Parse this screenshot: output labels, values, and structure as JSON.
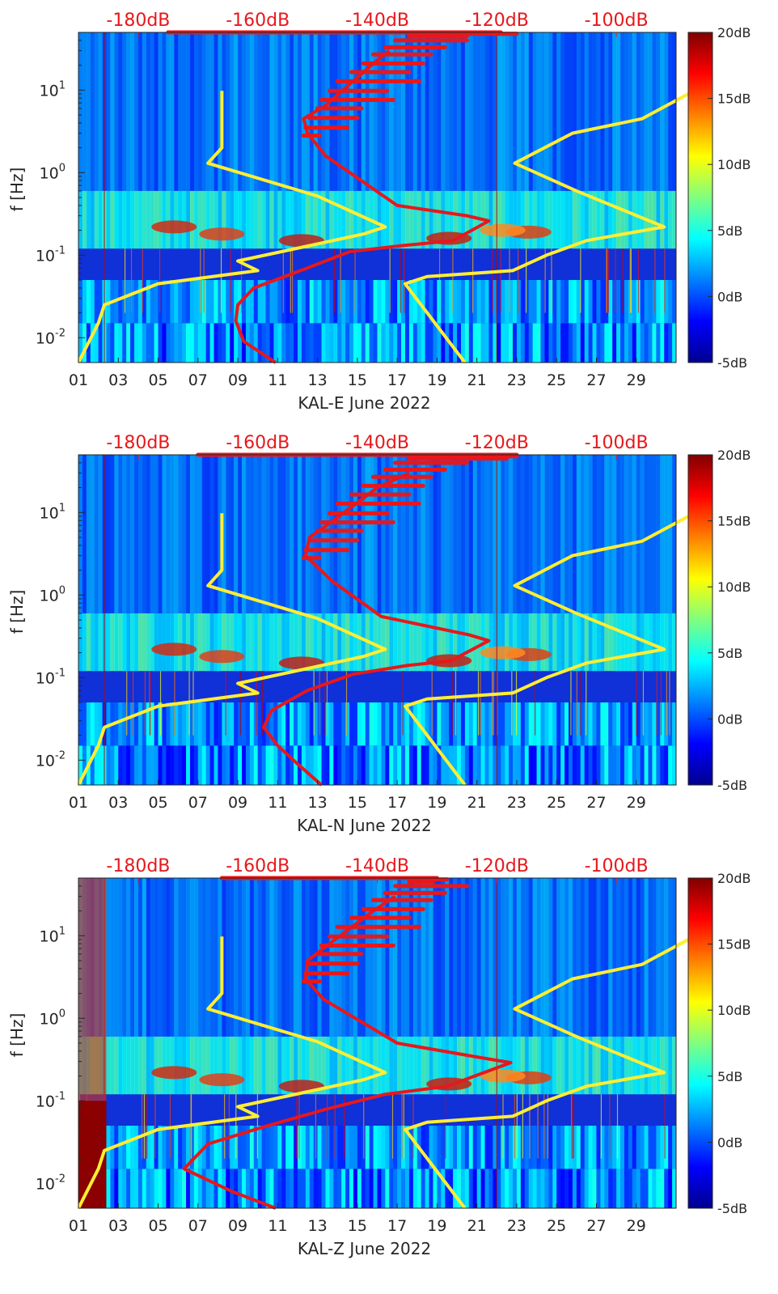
{
  "colors": {
    "reference_curve": "#ffee33",
    "psd_curve": "#e8171b",
    "top_axis_text": "#e8171b",
    "axis_text": "#262626"
  },
  "shared": {
    "ylabel": "f [Hz]",
    "x_tick_labels": [
      "01",
      "03",
      "05",
      "07",
      "09",
      "11",
      "13",
      "15",
      "17",
      "19",
      "21",
      "23",
      "25",
      "27",
      "29"
    ],
    "y_tick_labels": [
      "10-2",
      "100",
      "101"
    ],
    "y_tick_base": "10",
    "y_tick_exponents": [
      "-2",
      "-1",
      "0",
      "1"
    ],
    "top_axis_labels": [
      "-180dB",
      "-160dB",
      "-140dB",
      "-120dB",
      "-100dB"
    ],
    "colorbar_labels": [
      "20dB",
      "15dB",
      "10dB",
      "5dB",
      "0dB",
      "-5dB"
    ]
  },
  "chart_data": [
    {
      "type": "heatmap",
      "station": "KAL-E",
      "xlabel": "KAL-E June 2022",
      "ylabel": "f [Hz]",
      "x_unit": "day of June 2022",
      "x_range": [
        1,
        31
      ],
      "y_range_hz": [
        0.005,
        50
      ],
      "y_scale": "log",
      "colorbar_range_db": [
        -5,
        20
      ],
      "top_axis_db_range": [
        -190,
        -90
      ],
      "top_axis_ticks_db": [
        -180,
        -160,
        -140,
        -120,
        -100
      ],
      "noise_model_curves": [
        {
          "name": "low-noise",
          "points": [
            [
              0.0,
              0.005
            ],
            [
              1.0,
              0.015
            ],
            [
              1.3,
              0.025
            ],
            [
              4.0,
              0.045
            ],
            [
              9.0,
              0.065
            ],
            [
              8.0,
              0.085
            ],
            [
              14.3,
              0.18
            ],
            [
              15.4,
              0.22
            ],
            [
              12.0,
              0.52
            ],
            [
              6.5,
              1.3
            ],
            [
              7.2,
              2.0
            ],
            [
              7.2,
              9.8
            ]
          ]
        },
        {
          "name": "high-noise",
          "points": [
            [
              19.4,
              0.005
            ],
            [
              16.4,
              0.045
            ],
            [
              17.5,
              0.055
            ],
            [
              21.8,
              0.065
            ],
            [
              23.5,
              0.1
            ],
            [
              25.5,
              0.15
            ],
            [
              29.4,
              0.22
            ],
            [
              25.0,
              0.6
            ],
            [
              21.9,
              1.3
            ],
            [
              24.8,
              3.0
            ],
            [
              28.3,
              4.5
            ],
            [
              30.9,
              9.8
            ]
          ]
        }
      ],
      "psd_curve_points": [
        [
          9.9,
          0.005
        ],
        [
          8.3,
          0.009
        ],
        [
          7.9,
          0.016
        ],
        [
          8.0,
          0.025
        ],
        [
          8.8,
          0.04
        ],
        [
          11.5,
          0.07
        ],
        [
          13.6,
          0.11
        ],
        [
          16.2,
          0.13
        ],
        [
          18.8,
          0.15
        ],
        [
          20.6,
          0.26
        ],
        [
          19.5,
          0.3
        ],
        [
          16.0,
          0.4
        ],
        [
          12.4,
          1.6
        ],
        [
          11.5,
          3.0
        ],
        [
          11.3,
          4.5
        ],
        [
          12.4,
          6.5
        ],
        [
          14.7,
          20.0
        ],
        [
          15.6,
          30.0
        ]
      ],
      "psd_spread_fragments": [
        [
          [
            11.3,
            2.8
          ],
          [
            12.1,
            2.8
          ]
        ],
        [
          [
            11.4,
            3.5
          ],
          [
            13.5,
            3.5
          ]
        ],
        [
          [
            11.6,
            4.6
          ],
          [
            14.0,
            4.6
          ]
        ],
        [
          [
            12.0,
            6.0
          ],
          [
            14.2,
            6.0
          ]
        ],
        [
          [
            12.2,
            7.6
          ],
          [
            15.8,
            7.6
          ]
        ],
        [
          [
            12.6,
            9.8
          ],
          [
            15.5,
            9.8
          ]
        ],
        [
          [
            13.0,
            12.8
          ],
          [
            17.1,
            12.8
          ]
        ],
        [
          [
            13.7,
            16.5
          ],
          [
            16.6,
            16.5
          ]
        ],
        [
          [
            14.3,
            21.0
          ],
          [
            17.3,
            21.0
          ]
        ],
        [
          [
            14.8,
            27.0
          ],
          [
            17.7,
            27.0
          ]
        ],
        [
          [
            15.4,
            33.0
          ],
          [
            18.4,
            33.0
          ]
        ],
        [
          [
            15.9,
            40.0
          ],
          [
            19.5,
            40.0
          ]
        ],
        [
          [
            16.6,
            45.0
          ],
          [
            19.5,
            45.0
          ]
        ],
        [
          [
            17.0,
            48.0
          ],
          [
            22.0,
            48.0
          ]
        ],
        [
          [
            4.5,
            50.0
          ],
          [
            21.2,
            50.0
          ]
        ]
      ]
    },
    {
      "type": "heatmap",
      "station": "KAL-N",
      "xlabel": "KAL-N June 2022",
      "ylabel": "f [Hz]",
      "x_unit": "day of June 2022",
      "x_range": [
        1,
        31
      ],
      "y_range_hz": [
        0.005,
        50
      ],
      "y_scale": "log",
      "colorbar_range_db": [
        -5,
        20
      ],
      "top_axis_db_range": [
        -190,
        -90
      ],
      "top_axis_ticks_db": [
        -180,
        -160,
        -140,
        -120,
        -100
      ],
      "noise_model_curves": [
        {
          "name": "low-noise",
          "points": [
            [
              0.0,
              0.005
            ],
            [
              1.0,
              0.015
            ],
            [
              1.3,
              0.025
            ],
            [
              4.0,
              0.045
            ],
            [
              9.0,
              0.065
            ],
            [
              8.0,
              0.085
            ],
            [
              14.3,
              0.18
            ],
            [
              15.4,
              0.22
            ],
            [
              12.0,
              0.52
            ],
            [
              6.5,
              1.3
            ],
            [
              7.2,
              2.0
            ],
            [
              7.2,
              9.8
            ]
          ]
        },
        {
          "name": "high-noise",
          "points": [
            [
              19.4,
              0.005
            ],
            [
              16.4,
              0.045
            ],
            [
              17.5,
              0.055
            ],
            [
              21.8,
              0.065
            ],
            [
              23.5,
              0.1
            ],
            [
              25.5,
              0.15
            ],
            [
              29.4,
              0.22
            ],
            [
              25.0,
              0.6
            ],
            [
              21.9,
              1.3
            ],
            [
              24.8,
              3.0
            ],
            [
              28.3,
              4.5
            ],
            [
              30.9,
              9.8
            ]
          ]
        }
      ],
      "psd_curve_points": [
        [
          12.2,
          0.005
        ],
        [
          11.0,
          0.009
        ],
        [
          10.0,
          0.015
        ],
        [
          9.3,
          0.025
        ],
        [
          9.7,
          0.04
        ],
        [
          11.5,
          0.07
        ],
        [
          13.8,
          0.11
        ],
        [
          16.5,
          0.14
        ],
        [
          18.7,
          0.16
        ],
        [
          20.6,
          0.28
        ],
        [
          19.6,
          0.33
        ],
        [
          15.2,
          0.55
        ],
        [
          12.7,
          1.5
        ],
        [
          11.4,
          3.0
        ],
        [
          11.6,
          5.0
        ],
        [
          12.8,
          8.0
        ],
        [
          15.0,
          20.0
        ],
        [
          16.6,
          30.0
        ]
      ],
      "psd_spread_fragments": [
        [
          [
            11.3,
            2.8
          ],
          [
            12.1,
            2.8
          ]
        ],
        [
          [
            11.4,
            3.5
          ],
          [
            13.5,
            3.5
          ]
        ],
        [
          [
            11.6,
            4.6
          ],
          [
            14.0,
            4.6
          ]
        ],
        [
          [
            12.0,
            6.0
          ],
          [
            14.2,
            6.0
          ]
        ],
        [
          [
            12.2,
            7.6
          ],
          [
            15.8,
            7.6
          ]
        ],
        [
          [
            12.6,
            9.8
          ],
          [
            15.5,
            9.8
          ]
        ],
        [
          [
            13.0,
            12.8
          ],
          [
            17.1,
            12.8
          ]
        ],
        [
          [
            13.7,
            16.5
          ],
          [
            16.6,
            16.5
          ]
        ],
        [
          [
            14.3,
            21.0
          ],
          [
            17.3,
            21.0
          ]
        ],
        [
          [
            14.8,
            27.0
          ],
          [
            17.7,
            27.0
          ]
        ],
        [
          [
            15.4,
            33.0
          ],
          [
            18.4,
            33.0
          ]
        ],
        [
          [
            15.9,
            40.0
          ],
          [
            19.5,
            40.0
          ]
        ],
        [
          [
            16.6,
            45.0
          ],
          [
            21.5,
            45.0
          ]
        ],
        [
          [
            17.0,
            48.0
          ],
          [
            22.0,
            48.0
          ]
        ],
        [
          [
            6.0,
            50.0
          ],
          [
            22.0,
            50.0
          ]
        ]
      ]
    },
    {
      "type": "heatmap",
      "station": "KAL-Z",
      "xlabel": "KAL-Z June 2022",
      "ylabel": "f [Hz]",
      "x_unit": "day of June 2022",
      "x_range": [
        1,
        31
      ],
      "y_range_hz": [
        0.005,
        50
      ],
      "y_scale": "log",
      "colorbar_range_db": [
        -5,
        20
      ],
      "top_axis_db_range": [
        -190,
        -90
      ],
      "top_axis_ticks_db": [
        -180,
        -160,
        -140,
        -120,
        -100
      ],
      "noise_model_curves": [
        {
          "name": "low-noise",
          "points": [
            [
              0.0,
              0.005
            ],
            [
              1.0,
              0.015
            ],
            [
              1.3,
              0.025
            ],
            [
              4.0,
              0.045
            ],
            [
              9.0,
              0.065
            ],
            [
              8.0,
              0.085
            ],
            [
              14.3,
              0.18
            ],
            [
              15.4,
              0.22
            ],
            [
              12.0,
              0.52
            ],
            [
              6.5,
              1.3
            ],
            [
              7.2,
              2.0
            ],
            [
              7.2,
              9.8
            ]
          ]
        },
        {
          "name": "high-noise",
          "points": [
            [
              19.4,
              0.005
            ],
            [
              16.4,
              0.045
            ],
            [
              17.5,
              0.055
            ],
            [
              21.8,
              0.065
            ],
            [
              23.5,
              0.1
            ],
            [
              25.5,
              0.15
            ],
            [
              29.4,
              0.22
            ],
            [
              25.0,
              0.6
            ],
            [
              21.9,
              1.3
            ],
            [
              24.8,
              3.0
            ],
            [
              28.3,
              4.5
            ],
            [
              30.9,
              9.8
            ]
          ]
        }
      ],
      "psd_curve_points": [
        [
          9.9,
          0.005
        ],
        [
          7.7,
          0.008
        ],
        [
          5.3,
          0.015
        ],
        [
          6.5,
          0.03
        ],
        [
          9.5,
          0.05
        ],
        [
          12.5,
          0.08
        ],
        [
          15.4,
          0.12
        ],
        [
          18.5,
          0.15
        ],
        [
          21.7,
          0.29
        ],
        [
          20.3,
          0.33
        ],
        [
          16.0,
          0.5
        ],
        [
          12.3,
          1.7
        ],
        [
          11.4,
          3.0
        ],
        [
          11.5,
          5.0
        ],
        [
          12.6,
          8.0
        ],
        [
          14.8,
          20.0
        ],
        [
          15.9,
          30.0
        ]
      ],
      "psd_spread_fragments": [
        [
          [
            11.3,
            2.8
          ],
          [
            12.1,
            2.8
          ]
        ],
        [
          [
            11.4,
            3.5
          ],
          [
            13.5,
            3.5
          ]
        ],
        [
          [
            11.6,
            4.6
          ],
          [
            14.0,
            4.6
          ]
        ],
        [
          [
            12.0,
            6.0
          ],
          [
            14.2,
            6.0
          ]
        ],
        [
          [
            12.2,
            7.6
          ],
          [
            15.8,
            7.6
          ]
        ],
        [
          [
            12.6,
            9.8
          ],
          [
            15.5,
            9.8
          ]
        ],
        [
          [
            13.0,
            12.8
          ],
          [
            17.1,
            12.8
          ]
        ],
        [
          [
            13.7,
            16.5
          ],
          [
            16.6,
            16.5
          ]
        ],
        [
          [
            14.3,
            21.0
          ],
          [
            17.3,
            21.0
          ]
        ],
        [
          [
            14.8,
            27.0
          ],
          [
            17.7,
            27.0
          ]
        ],
        [
          [
            15.4,
            33.0
          ],
          [
            18.4,
            33.0
          ]
        ],
        [
          [
            15.9,
            40.0
          ],
          [
            19.5,
            40.0
          ]
        ],
        [
          [
            16.6,
            45.0
          ],
          [
            17.8,
            45.0
          ]
        ],
        [
          [
            17.0,
            48.0
          ],
          [
            18.5,
            48.0
          ]
        ],
        [
          [
            7.2,
            50.0
          ],
          [
            18.0,
            50.0
          ]
        ]
      ]
    }
  ]
}
